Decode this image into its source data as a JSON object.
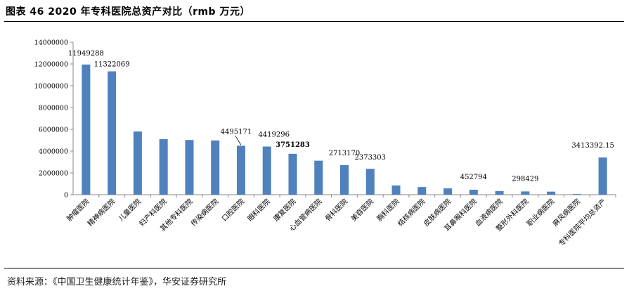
{
  "header": {
    "title": "图表 46 2020 年专科医院总资产对比（rmb 万元）"
  },
  "footer": {
    "source": "资料来源：《中国卫生健康统计年鉴》，华安证券研究所"
  },
  "colors": {
    "bar": "#4f81bd",
    "axis": "#888888"
  },
  "chart_data": {
    "type": "bar",
    "title": "",
    "xlabel": "",
    "ylabel": "",
    "ylim": [
      0,
      14000000
    ],
    "yticks": [
      "0",
      "2000000",
      "4000000",
      "6000000",
      "8000000",
      "10000000",
      "12000000",
      "14000000"
    ],
    "grid": false,
    "legend": "none",
    "categories": [
      "肿瘤医院",
      "精神病医院",
      "儿童医院",
      "妇产科医院",
      "其他专科医院",
      "传染病医院",
      "口腔医院",
      "眼科医院",
      "康复医院",
      "心血管病医院",
      "骨科医院",
      "美容医院",
      "胸科医院",
      "结核病医院",
      "皮肤病医院",
      "耳鼻喉科医院",
      "血液病医院",
      "整形外科医院",
      "职业病医院",
      "麻风病医院",
      "专科医院平均总资产"
    ],
    "values": [
      11949288,
      11322069,
      5800000,
      5100000,
      5020000,
      4980000,
      4495171,
      4419296,
      3751283,
      3120000,
      2713170,
      2373303,
      850000,
      700000,
      580000,
      452794,
      330000,
      298429,
      280000,
      60000,
      3413392.15
    ],
    "data_labels": [
      {
        "index": 0,
        "text": "11949288",
        "bold": false
      },
      {
        "index": 1,
        "text": "11322069",
        "bold": false
      },
      {
        "index": 6,
        "text": "4495171",
        "bold": false
      },
      {
        "index": 7,
        "text": "4419296",
        "bold": false
      },
      {
        "index": 8,
        "text": "3751283",
        "bold": true
      },
      {
        "index": 10,
        "text": "2713170",
        "bold": false
      },
      {
        "index": 11,
        "text": "2373303",
        "bold": false
      },
      {
        "index": 15,
        "text": "452794",
        "bold": false
      },
      {
        "index": 17,
        "text": "298429",
        "bold": false
      },
      {
        "index": 20,
        "text": "3413392.15",
        "bold": false
      }
    ]
  }
}
